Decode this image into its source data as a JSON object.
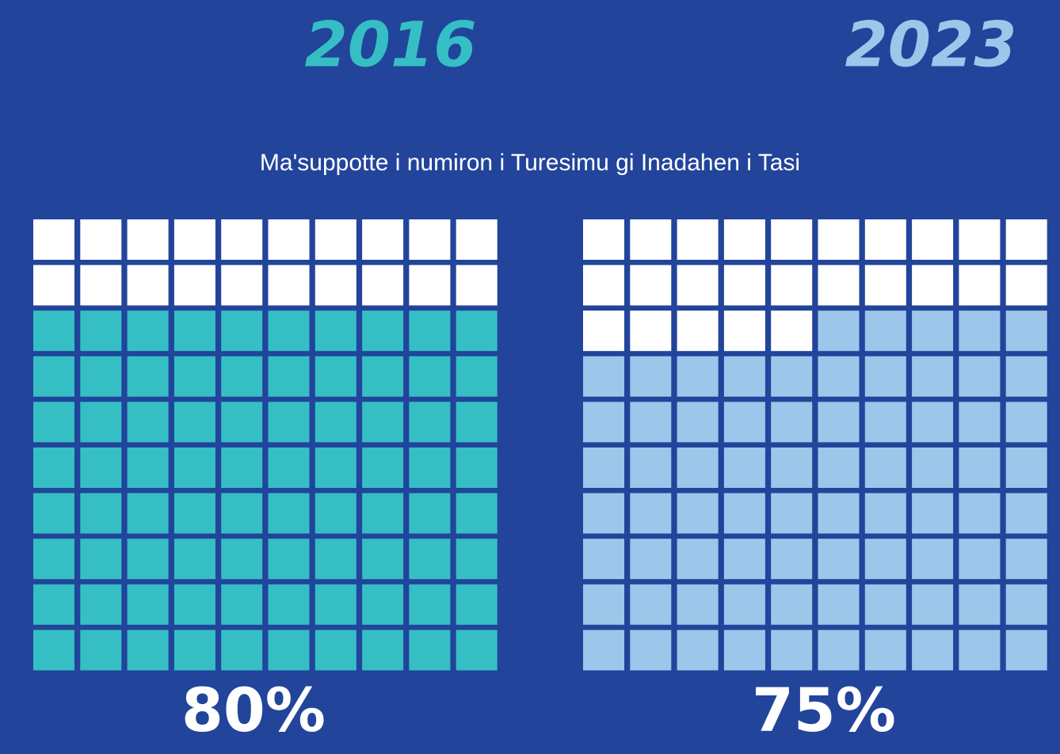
{
  "chart_data": {
    "type": "waffle",
    "title": "Maʹsuppotte i numiron i Turesimu gi Inadahen i Tasi",
    "categories": [
      "2016",
      "2023"
    ],
    "values": [
      80,
      75
    ],
    "value_labels": [
      "80%",
      "75%"
    ],
    "colors": [
      "#35bfc4",
      "#9dc6ea"
    ],
    "empty_color": "#ffffff"
  }
}
